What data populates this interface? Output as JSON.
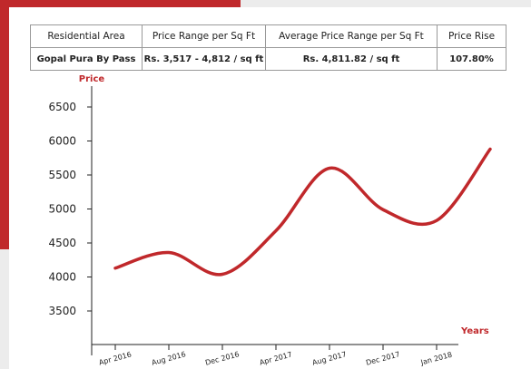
{
  "table": {
    "header": [
      "Residential Area",
      "Price Range per Sq Ft",
      "Average Price Range per Sq Ft",
      "Price Rise"
    ],
    "rows": [
      [
        "Gopal Pura By Pass",
        "Rs. 3,517 - 4,812 / sq ft",
        "Rs. 4,811.82 / sq ft",
        "107.80%"
      ]
    ]
  },
  "chart_data": {
    "type": "line",
    "x_label": "Years",
    "y_label": "Price",
    "categories": [
      "Apr 2016",
      "Aug 2016",
      "Dec 2016",
      "Apr 2017",
      "Aug 2017",
      "Dec 2017",
      "Jan 2018",
      null
    ],
    "values": [
      4130,
      4360,
      4040,
      4680,
      5600,
      4990,
      4830,
      5880
    ],
    "color": "#c0282b",
    "ylim": [
      3000,
      6800
    ],
    "yticks": [
      3500,
      4000,
      4500,
      5000,
      5500,
      6000,
      6500
    ]
  }
}
